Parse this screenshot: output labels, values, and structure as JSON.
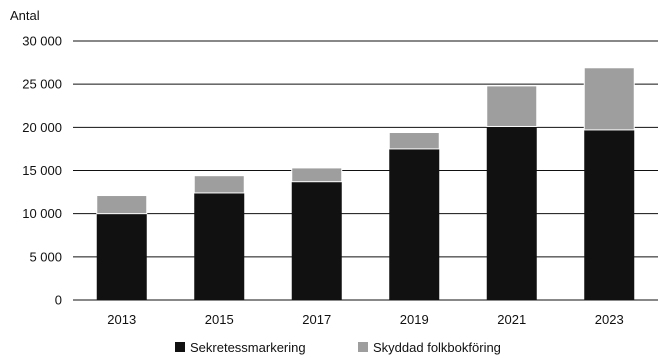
{
  "chart_data": {
    "type": "bar",
    "stacked": true,
    "ylabel": "Antal",
    "xlabel": "",
    "categories": [
      "2013",
      "2015",
      "2017",
      "2019",
      "2021",
      "2023"
    ],
    "series": [
      {
        "name": "Sekretessmarkering",
        "values": [
          10000,
          12400,
          13700,
          17500,
          20100,
          19700
        ],
        "color": "#111111"
      },
      {
        "name": "Skyddad folkbokföring",
        "values": [
          2100,
          2000,
          1600,
          1900,
          4700,
          7200
        ],
        "color": "#9e9e9e"
      }
    ],
    "ylim": [
      0,
      30000
    ],
    "yticks": [
      0,
      5000,
      10000,
      15000,
      20000,
      25000,
      30000
    ],
    "ytick_labels": [
      "0",
      "5 000",
      "10 000",
      "15 000",
      "20 000",
      "25 000",
      "30 000"
    ],
    "grid": true,
    "legend_position": "bottom"
  }
}
